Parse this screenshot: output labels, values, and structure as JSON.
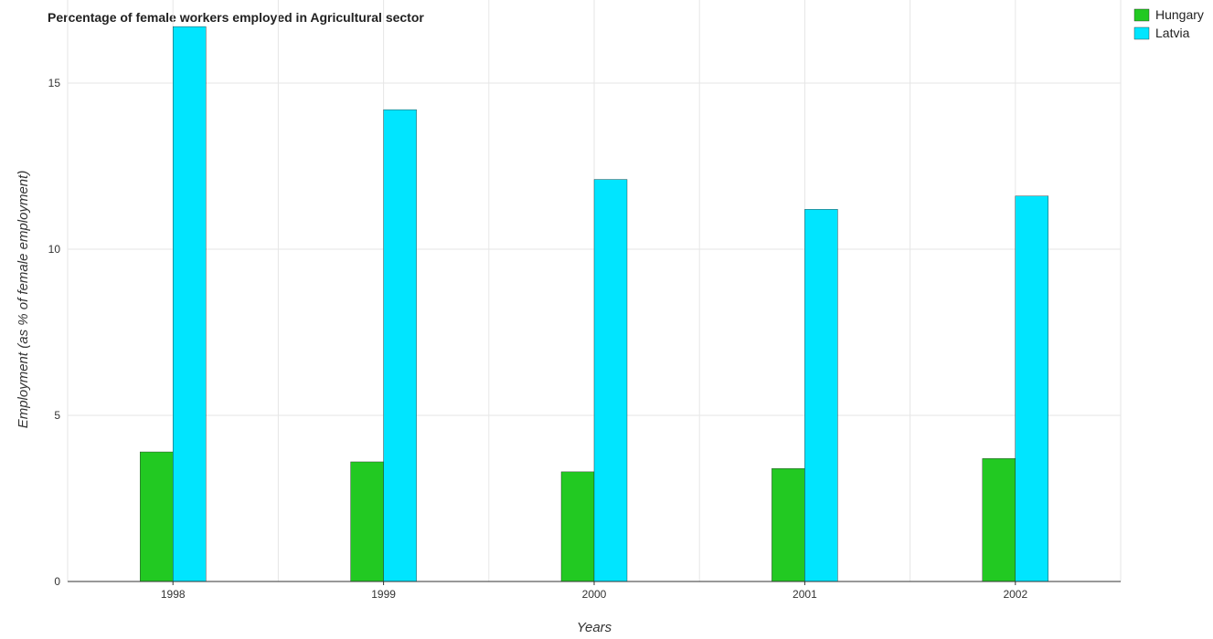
{
  "chart_data": {
    "type": "bar",
    "title": "Percentage of female workers employed in Agricultural sector",
    "xlabel": "Years",
    "ylabel": "Employment (as % of female employment)",
    "categories": [
      "1998",
      "1999",
      "2000",
      "2001",
      "2002"
    ],
    "series": [
      {
        "name": "Hungary",
        "color": "#22c922",
        "values": [
          3.9,
          3.6,
          3.3,
          3.4,
          3.7
        ]
      },
      {
        "name": "Latvia",
        "color": "#00e5ff",
        "values": [
          16.7,
          14.2,
          12.1,
          11.2,
          11.6
        ]
      }
    ],
    "ylim": [
      0,
      17.5
    ],
    "yticks": [
      0,
      5,
      10,
      15
    ],
    "grid": true,
    "legend": "top-right"
  }
}
